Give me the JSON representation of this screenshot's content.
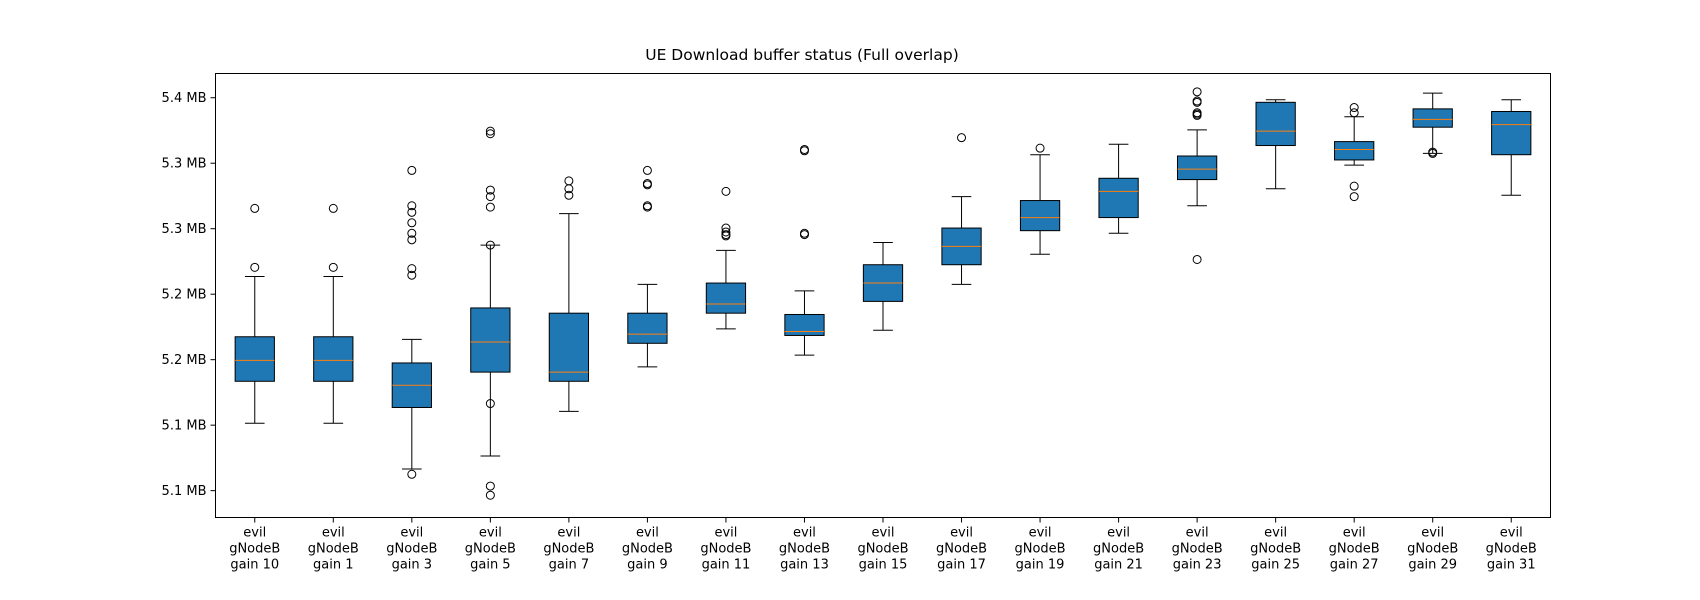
{
  "chart_data": {
    "type": "boxplot",
    "title": "UE Download buffer status (Full overlap)",
    "xlabel": "",
    "ylabel": "",
    "ylim": [
      5.0795,
      5.4185
    ],
    "yticks": [
      {
        "value": 5.1,
        "label": "5.1 MB"
      },
      {
        "value": 5.15,
        "label": "5.1 MB"
      },
      {
        "value": 5.2,
        "label": "5.2 MB"
      },
      {
        "value": 5.25,
        "label": "5.2 MB"
      },
      {
        "value": 5.3,
        "label": "5.3 MB"
      },
      {
        "value": 5.35,
        "label": "5.3 MB"
      },
      {
        "value": 5.4,
        "label": "5.4 MB"
      }
    ],
    "grid": false,
    "box_color": "#1f77b4",
    "median_color": "#ff7f0e",
    "categories": [
      [
        "evil",
        "gNodeB",
        "gain 10"
      ],
      [
        "evil",
        "gNodeB",
        "gain 1"
      ],
      [
        "evil",
        "gNodeB",
        "gain 3"
      ],
      [
        "evil",
        "gNodeB",
        "gain 5"
      ],
      [
        "evil",
        "gNodeB",
        "gain 7"
      ],
      [
        "evil",
        "gNodeB",
        "gain 9"
      ],
      [
        "evil",
        "gNodeB",
        "gain 11"
      ],
      [
        "evil",
        "gNodeB",
        "gain 13"
      ],
      [
        "evil",
        "gNodeB",
        "gain 15"
      ],
      [
        "evil",
        "gNodeB",
        "gain 17"
      ],
      [
        "evil",
        "gNodeB",
        "gain 19"
      ],
      [
        "evil",
        "gNodeB",
        "gain 21"
      ],
      [
        "evil",
        "gNodeB",
        "gain 23"
      ],
      [
        "evil",
        "gNodeB",
        "gain 25"
      ],
      [
        "evil",
        "gNodeB",
        "gain 27"
      ],
      [
        "evil",
        "gNodeB",
        "gain 29"
      ],
      [
        "evil",
        "gNodeB",
        "gain 31"
      ]
    ],
    "boxes": [
      {
        "whisker_low": 5.1515,
        "q1": 5.1835,
        "median": 5.1995,
        "q3": 5.2175,
        "whisker_high": 5.2635,
        "fliers": [
          5.2705,
          5.3155
        ]
      },
      {
        "whisker_low": 5.1515,
        "q1": 5.1835,
        "median": 5.1995,
        "q3": 5.2175,
        "whisker_high": 5.2635,
        "fliers": [
          5.2705,
          5.3155
        ]
      },
      {
        "whisker_low": 5.1165,
        "q1": 5.1635,
        "median": 5.1805,
        "q3": 5.1975,
        "whisker_high": 5.2155,
        "fliers": [
          5.1125,
          5.2645,
          5.2695,
          5.2915,
          5.2965,
          5.3045,
          5.3125,
          5.3175,
          5.3445
        ]
      },
      {
        "whisker_low": 5.1265,
        "q1": 5.1905,
        "median": 5.2135,
        "q3": 5.2395,
        "whisker_high": 5.2875,
        "fliers": [
          5.0965,
          5.1035,
          5.1665,
          5.2875,
          5.3165,
          5.3245,
          5.3295,
          5.3725,
          5.3745
        ]
      },
      {
        "whisker_low": 5.1605,
        "q1": 5.1835,
        "median": 5.1905,
        "q3": 5.2355,
        "whisker_high": 5.3115,
        "fliers": [
          5.3255,
          5.3305,
          5.3365
        ]
      },
      {
        "whisker_low": 5.1945,
        "q1": 5.2125,
        "median": 5.2195,
        "q3": 5.2355,
        "whisker_high": 5.2575,
        "fliers": [
          5.3165,
          5.3175,
          5.3335,
          5.3345,
          5.3445
        ]
      },
      {
        "whisker_low": 5.2235,
        "q1": 5.2355,
        "median": 5.2425,
        "q3": 5.2585,
        "whisker_high": 5.2835,
        "fliers": [
          5.2945,
          5.2955,
          5.2975,
          5.3005,
          5.3285
        ]
      },
      {
        "whisker_low": 5.2035,
        "q1": 5.2185,
        "median": 5.2215,
        "q3": 5.2345,
        "whisker_high": 5.2525,
        "fliers": [
          5.2955,
          5.2965,
          5.3595,
          5.3605
        ]
      },
      {
        "whisker_low": 5.2225,
        "q1": 5.2445,
        "median": 5.2585,
        "q3": 5.2725,
        "whisker_high": 5.2895,
        "fliers": []
      },
      {
        "whisker_low": 5.2575,
        "q1": 5.2725,
        "median": 5.2865,
        "q3": 5.3005,
        "whisker_high": 5.3245,
        "fliers": [
          5.3695
        ]
      },
      {
        "whisker_low": 5.2805,
        "q1": 5.2985,
        "median": 5.3085,
        "q3": 5.3215,
        "whisker_high": 5.3565,
        "fliers": [
          5.3615
        ]
      },
      {
        "whisker_low": 5.2965,
        "q1": 5.3085,
        "median": 5.3285,
        "q3": 5.3385,
        "whisker_high": 5.3645,
        "fliers": []
      },
      {
        "whisker_low": 5.3175,
        "q1": 5.3375,
        "median": 5.3455,
        "q3": 5.3555,
        "whisker_high": 5.3755,
        "fliers": [
          5.2765,
          5.3865,
          5.3875,
          5.3885,
          5.3965,
          5.3975,
          5.4045
        ]
      },
      {
        "whisker_low": 5.3305,
        "q1": 5.3635,
        "median": 5.3745,
        "q3": 5.3965,
        "whisker_high": 5.3985,
        "fliers": []
      },
      {
        "whisker_low": 5.3485,
        "q1": 5.3525,
        "median": 5.3605,
        "q3": 5.3665,
        "whisker_high": 5.3855,
        "fliers": [
          5.3245,
          5.3325,
          5.3885,
          5.3925
        ]
      },
      {
        "whisker_low": 5.3575,
        "q1": 5.3775,
        "median": 5.3835,
        "q3": 5.3915,
        "whisker_high": 5.4035,
        "fliers": [
          5.3575,
          5.3585
        ]
      },
      {
        "whisker_low": 5.3255,
        "q1": 5.3565,
        "median": 5.3795,
        "q3": 5.3895,
        "whisker_high": 5.3985,
        "fliers": []
      }
    ]
  }
}
